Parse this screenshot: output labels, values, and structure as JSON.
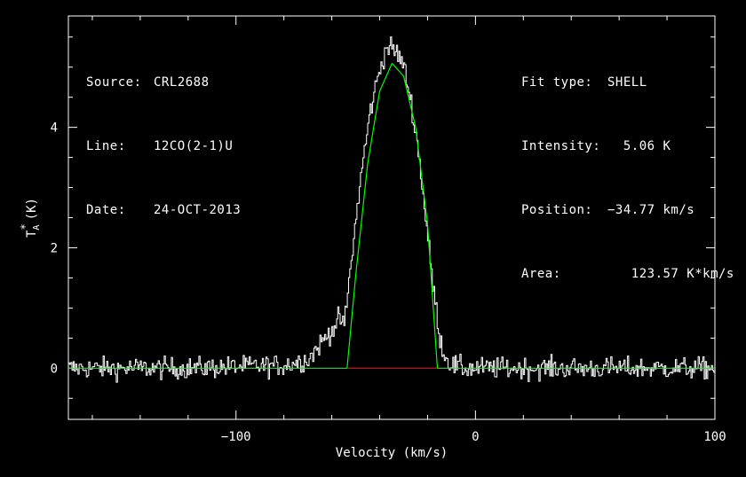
{
  "header_left": [
    {
      "key": "Source:",
      "value": "CRL2688"
    },
    {
      "key": "Line:",
      "value": "12CO(2-1)U"
    },
    {
      "key": "Date:",
      "value": "24-OCT-2013"
    }
  ],
  "header_right": [
    {
      "key": "Fit type:",
      "value": "SHELL"
    },
    {
      "key": "Intensity:",
      "value": "  5.06 K"
    },
    {
      "key": "Position:",
      "value": "−34.77 km/s"
    },
    {
      "key": "Area:",
      "value": "   123.57 K*km/s"
    }
  ],
  "colors": {
    "background": "#000000",
    "axes": "#ffffff",
    "data": "#ffffff",
    "fit": "#00ff00",
    "baseline": "#ff0000"
  },
  "chart_data": {
    "type": "line",
    "xlabel": "Velocity (km/s)",
    "ylabel_main": "T",
    "ylabel_sub": "A",
    "ylabel_sup": "*",
    "ylabel_unit": "(K)",
    "xlim": [
      -170,
      100
    ],
    "ylim": [
      -0.85,
      5.85
    ],
    "xticks": [
      -100,
      0,
      100
    ],
    "xtick_labels": [
      "−100",
      "0",
      "100"
    ],
    "yticks": [
      0,
      2,
      4
    ],
    "ytick_labels": [
      "0",
      "2",
      "4"
    ],
    "series": [
      {
        "style": "histogram-noisy",
        "x": [
          -170,
          -120,
          -80,
          -70,
          -66,
          -62,
          -58,
          -57,
          -55,
          -52,
          -48,
          -44,
          -40,
          -37,
          -35,
          -33,
          -30,
          -27,
          -24,
          -21,
          -18,
          -15,
          -13,
          -10,
          -5,
          0,
          50,
          100
        ],
        "y": [
          0,
          0,
          0.05,
          0.15,
          0.35,
          0.55,
          0.75,
          0.85,
          0.7,
          1.8,
          3.2,
          4.3,
          5.0,
          5.35,
          5.3,
          5.25,
          5.0,
          4.4,
          3.6,
          2.5,
          1.4,
          0.5,
          0.2,
          0.05,
          0,
          0,
          0,
          0
        ]
      },
      {
        "style": "fit",
        "x": [
          -170,
          -53.6,
          -50,
          -45,
          -40,
          -35,
          -34.77,
          -30,
          -25,
          -20,
          -15.9,
          100
        ],
        "y": [
          0,
          0,
          1.55,
          3.4,
          4.6,
          5.05,
          5.06,
          4.85,
          4.0,
          2.4,
          0,
          0
        ]
      },
      {
        "style": "baseline",
        "x": [
          -53.6,
          -15.9
        ],
        "y": [
          0,
          0
        ]
      }
    ],
    "noise_rms": 0.09,
    "grid": false
  }
}
